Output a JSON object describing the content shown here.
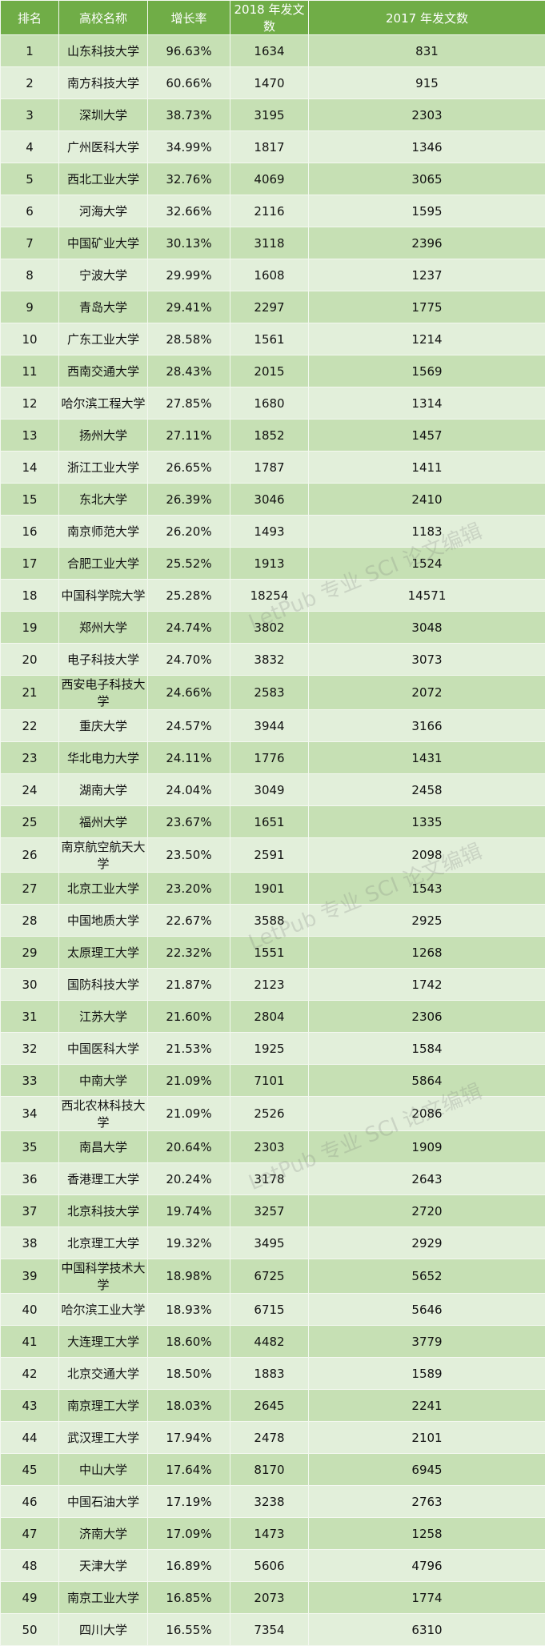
{
  "header": [
    "排名",
    "高校名称",
    "增长率",
    "2018 年发文数",
    "2017 年发文数"
  ],
  "watermark": "LetPub 专业 SCI 论文编辑",
  "colors": {
    "header": "#70ad47",
    "row_odd": "#c6e0b4",
    "row_even": "#e2efda"
  },
  "rows": [
    [
      "1",
      "山东科技大学",
      "96.63%",
      "1634",
      "831"
    ],
    [
      "2",
      "南方科技大学",
      "60.66%",
      "1470",
      "915"
    ],
    [
      "3",
      "深圳大学",
      "38.73%",
      "3195",
      "2303"
    ],
    [
      "4",
      "广州医科大学",
      "34.99%",
      "1817",
      "1346"
    ],
    [
      "5",
      "西北工业大学",
      "32.76%",
      "4069",
      "3065"
    ],
    [
      "6",
      "河海大学",
      "32.66%",
      "2116",
      "1595"
    ],
    [
      "7",
      "中国矿业大学",
      "30.13%",
      "3118",
      "2396"
    ],
    [
      "8",
      "宁波大学",
      "29.99%",
      "1608",
      "1237"
    ],
    [
      "9",
      "青岛大学",
      "29.41%",
      "2297",
      "1775"
    ],
    [
      "10",
      "广东工业大学",
      "28.58%",
      "1561",
      "1214"
    ],
    [
      "11",
      "西南交通大学",
      "28.43%",
      "2015",
      "1569"
    ],
    [
      "12",
      "哈尔滨工程大学",
      "27.85%",
      "1680",
      "1314"
    ],
    [
      "13",
      "扬州大学",
      "27.11%",
      "1852",
      "1457"
    ],
    [
      "14",
      "浙江工业大学",
      "26.65%",
      "1787",
      "1411"
    ],
    [
      "15",
      "东北大学",
      "26.39%",
      "3046",
      "2410"
    ],
    [
      "16",
      "南京师范大学",
      "26.20%",
      "1493",
      "1183"
    ],
    [
      "17",
      "合肥工业大学",
      "25.52%",
      "1913",
      "1524"
    ],
    [
      "18",
      "中国科学院大学",
      "25.28%",
      "18254",
      "14571"
    ],
    [
      "19",
      "郑州大学",
      "24.74%",
      "3802",
      "3048"
    ],
    [
      "20",
      "电子科技大学",
      "24.70%",
      "3832",
      "3073"
    ],
    [
      "21",
      "西安电子科技大学",
      "24.66%",
      "2583",
      "2072"
    ],
    [
      "22",
      "重庆大学",
      "24.57%",
      "3944",
      "3166"
    ],
    [
      "23",
      "华北电力大学",
      "24.11%",
      "1776",
      "1431"
    ],
    [
      "24",
      "湖南大学",
      "24.04%",
      "3049",
      "2458"
    ],
    [
      "25",
      "福州大学",
      "23.67%",
      "1651",
      "1335"
    ],
    [
      "26",
      "南京航空航天大学",
      "23.50%",
      "2591",
      "2098"
    ],
    [
      "27",
      "北京工业大学",
      "23.20%",
      "1901",
      "1543"
    ],
    [
      "28",
      "中国地质大学",
      "22.67%",
      "3588",
      "2925"
    ],
    [
      "29",
      "太原理工大学",
      "22.32%",
      "1551",
      "1268"
    ],
    [
      "30",
      "国防科技大学",
      "21.87%",
      "2123",
      "1742"
    ],
    [
      "31",
      "江苏大学",
      "21.60%",
      "2804",
      "2306"
    ],
    [
      "32",
      "中国医科大学",
      "21.53%",
      "1925",
      "1584"
    ],
    [
      "33",
      "中南大学",
      "21.09%",
      "7101",
      "5864"
    ],
    [
      "34",
      "西北农林科技大学",
      "21.09%",
      "2526",
      "2086"
    ],
    [
      "35",
      "南昌大学",
      "20.64%",
      "2303",
      "1909"
    ],
    [
      "36",
      "香港理工大学",
      "20.24%",
      "3178",
      "2643"
    ],
    [
      "37",
      "北京科技大学",
      "19.74%",
      "3257",
      "2720"
    ],
    [
      "38",
      "北京理工大学",
      "19.32%",
      "3495",
      "2929"
    ],
    [
      "39",
      "中国科学技术大学",
      "18.98%",
      "6725",
      "5652"
    ],
    [
      "40",
      "哈尔滨工业大学",
      "18.93%",
      "6715",
      "5646"
    ],
    [
      "41",
      "大连理工大学",
      "18.60%",
      "4482",
      "3779"
    ],
    [
      "42",
      "北京交通大学",
      "18.50%",
      "1883",
      "1589"
    ],
    [
      "43",
      "南京理工大学",
      "18.03%",
      "2645",
      "2241"
    ],
    [
      "44",
      "武汉理工大学",
      "17.94%",
      "2478",
      "2101"
    ],
    [
      "45",
      "中山大学",
      "17.64%",
      "8170",
      "6945"
    ],
    [
      "46",
      "中国石油大学",
      "17.19%",
      "3238",
      "2763"
    ],
    [
      "47",
      "济南大学",
      "17.09%",
      "1473",
      "1258"
    ],
    [
      "48",
      "天津大学",
      "16.89%",
      "5606",
      "4796"
    ],
    [
      "49",
      "南京工业大学",
      "16.85%",
      "2073",
      "1774"
    ],
    [
      "50",
      "四川大学",
      "16.55%",
      "7354",
      "6310"
    ]
  ]
}
